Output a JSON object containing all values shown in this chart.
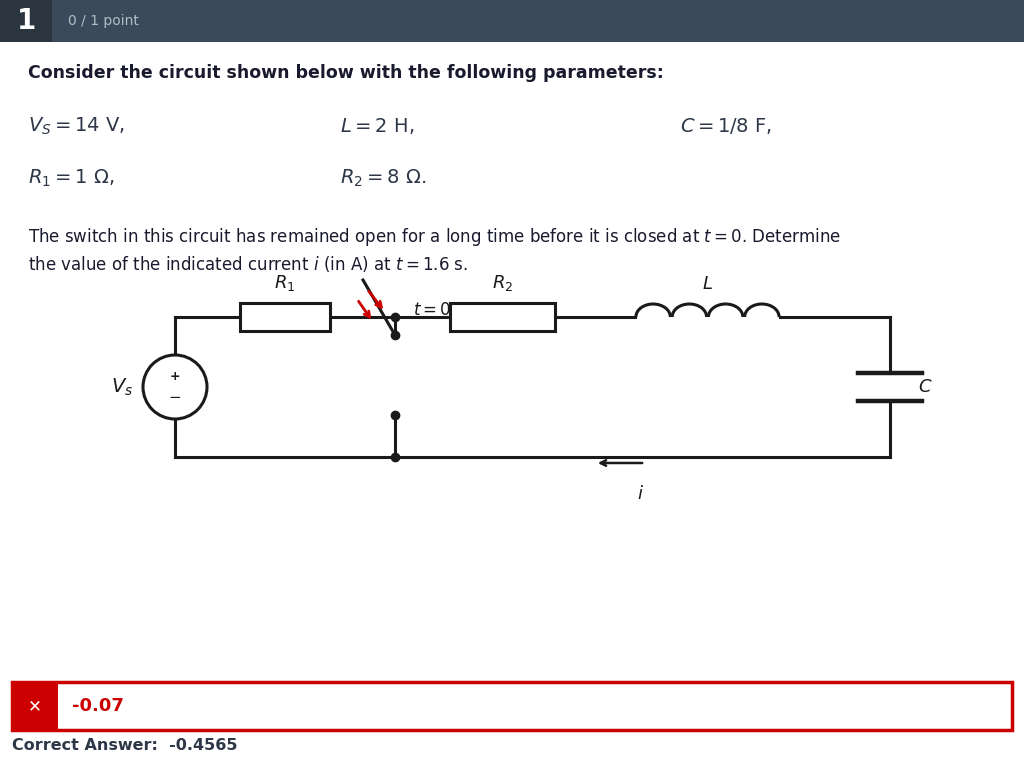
{
  "bg_color": "#ffffff",
  "header_bg": "#3a4a5a",
  "header_text": "1",
  "header_subtext": "0 / 1 point",
  "answer_box_color": "#cc0000",
  "answer_value": "-0.07",
  "correct_answer_text": "Correct Answer:  -0.4565"
}
